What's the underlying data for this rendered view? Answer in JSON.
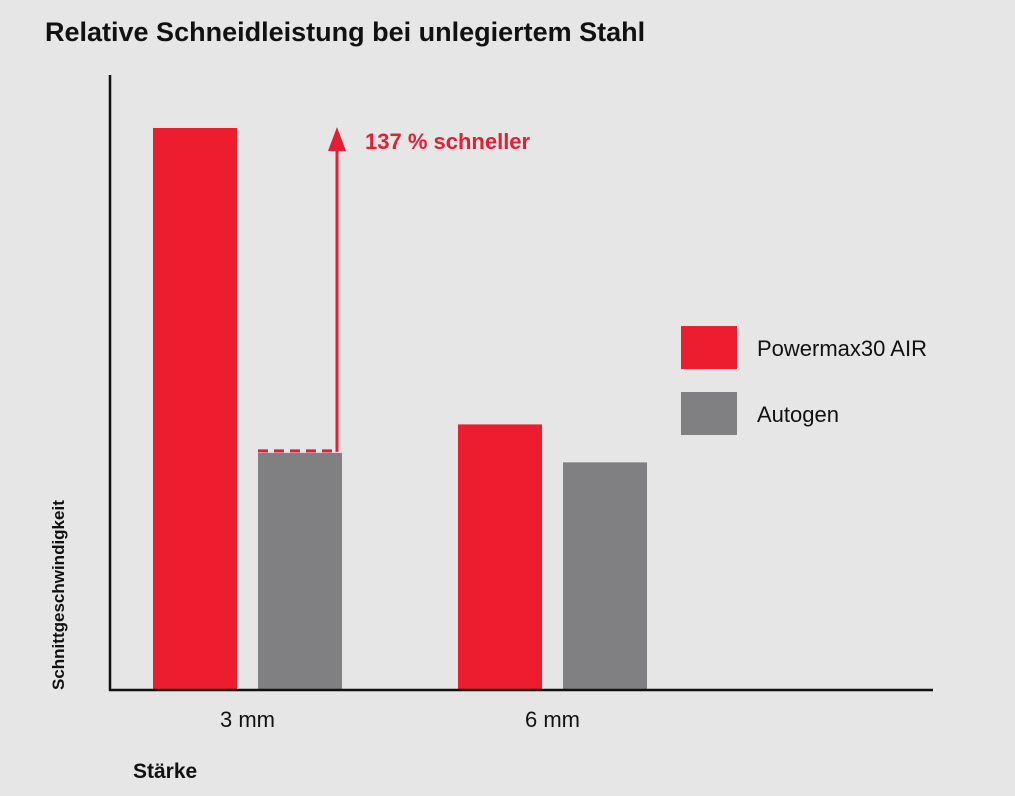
{
  "chart_data": {
    "type": "bar",
    "title": "Relative Schneidleistung bei unlegiertem Stahl",
    "xlabel": "Stärke",
    "ylabel": "Schnittgeschwindigkeit",
    "categories": [
      "3 mm",
      "6 mm"
    ],
    "series": [
      {
        "name": "Powermax30 AIR",
        "values": [
          2.37,
          1.12
        ]
      },
      {
        "name": "Autogen",
        "values": [
          1.0,
          0.96
        ]
      }
    ],
    "ylim": [
      0,
      2.6
    ],
    "grid": false,
    "legend": "right",
    "colors": {
      "Powermax30 AIR": "#ee1c2f",
      "Autogen": "#808083"
    },
    "annotation": {
      "text": "137 % schneller",
      "category": "3 mm",
      "from_value": 1.0,
      "to_value": 2.37,
      "color": "#e51e34"
    }
  }
}
